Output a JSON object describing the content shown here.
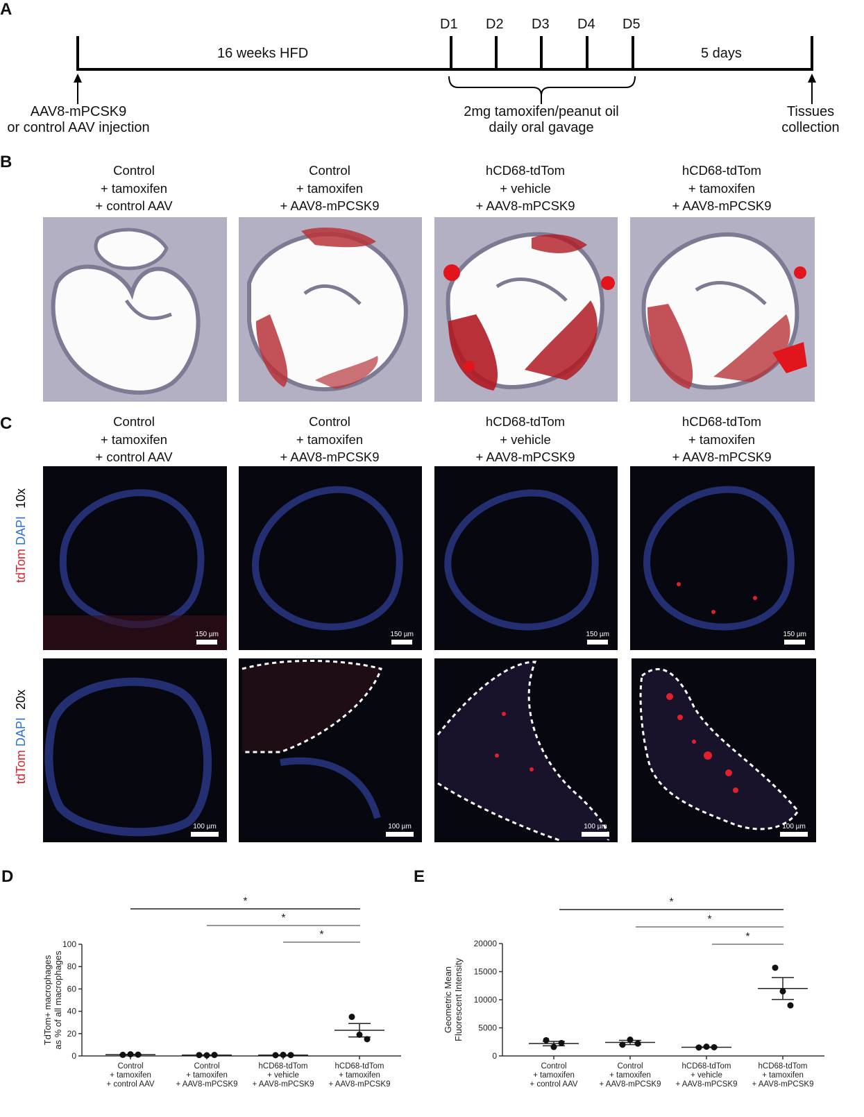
{
  "panels": {
    "a": "A",
    "b": "B",
    "c": "C",
    "d": "D",
    "e": "E"
  },
  "timeline": {
    "phase1": "16 weeks HFD",
    "phase2": "5 days",
    "days": [
      "D1",
      "D2",
      "D3",
      "D4",
      "D5"
    ],
    "left_note_l1": "AAV8-mPCSK9",
    "left_note_l2": "or control AAV injection",
    "gavage_l1": "2mg tamoxifen/peanut oil",
    "gavage_l2": "daily oral gavage",
    "right_note_l1": "Tissues",
    "right_note_l2": "collection"
  },
  "groups": [
    "Control\n+ tamoxifen\n+ control AAV",
    "Control\n+ tamoxifen\n+ AAV8-mPCSK9",
    "hCD68-tdTom\n+ vehicle\n+ AAV8-mPCSK9",
    "hCD68-tdTom\n+ tamoxifen\n+ AAV8-mPCSK9"
  ],
  "microscopy": {
    "row1_mag": "10x",
    "row2_mag": "20x",
    "stain_red": "tdTom",
    "stain_blue": "DAPI",
    "scale_10x": "150 µm",
    "scale_20x": "100 µm",
    "colors": {
      "tdtom": "#e0202a",
      "dapi": "#2f6fd6"
    }
  },
  "chart_data": [
    {
      "type": "scatter",
      "panel": "D",
      "ylabel": "TdTom+ macrophages\nas % of all macrophages",
      "ylim": [
        0,
        100
      ],
      "yticks": [
        0,
        20,
        40,
        60,
        80,
        100
      ],
      "categories": [
        "Control\n+ tamoxifen\n+ control AAV",
        "Control\n+ tamoxifen\n+ AAV8-mPCSK9",
        "hCD68-tdTom\n+ vehicle\n+ AAV8-mPCSK9",
        "hCD68-tdTom\n+ tamoxifen\n+ AAV8-mPCSK9"
      ],
      "points": [
        [
          1.0,
          1.5,
          1.2
        ],
        [
          0.8,
          0.6,
          0.9
        ],
        [
          0.7,
          1.0,
          0.8
        ],
        [
          35,
          19,
          15
        ]
      ],
      "means": [
        1.2,
        0.8,
        0.8,
        23
      ],
      "sem": [
        0.2,
        0.1,
        0.1,
        6
      ],
      "significance": [
        {
          "from": 0,
          "to": 3,
          "label": "*"
        },
        {
          "from": 1,
          "to": 3,
          "label": "*"
        },
        {
          "from": 2,
          "to": 3,
          "label": "*"
        }
      ]
    },
    {
      "type": "scatter",
      "panel": "E",
      "ylabel": "Geometric Mean\nFluorescent Intensity",
      "ylim": [
        0,
        20000
      ],
      "yticks": [
        0,
        5000,
        10000,
        15000,
        20000
      ],
      "categories": [
        "Control\n+ tamoxifen\n+ control AAV",
        "Control\n+ tamoxifen\n+ AAV8-mPCSK9",
        "hCD68-tdTom\n+ vehicle\n+ AAV8-mPCSK9",
        "hCD68-tdTom\n+ tamoxifen\n+ AAV8-mPCSK9"
      ],
      "points": [
        [
          2800,
          1600,
          2300
        ],
        [
          2000,
          2900,
          2200
        ],
        [
          1500,
          1650,
          1550
        ],
        [
          15700,
          11500,
          9000
        ]
      ],
      "means": [
        2200,
        2400,
        1550,
        12000
      ],
      "sem": [
        400,
        380,
        60,
        1950
      ],
      "significance": [
        {
          "from": 0,
          "to": 3,
          "label": "*"
        },
        {
          "from": 1,
          "to": 3,
          "label": "*"
        },
        {
          "from": 2,
          "to": 3,
          "label": "*"
        }
      ]
    }
  ]
}
